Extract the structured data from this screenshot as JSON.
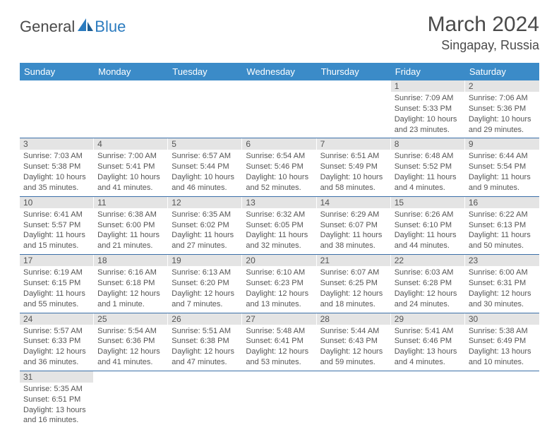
{
  "logo": {
    "part1": "General",
    "part2": "Blue"
  },
  "title": "March 2024",
  "location": "Singapay, Russia",
  "header_bg": "#3b8bc8",
  "row_border": "#3b6fa8",
  "daynum_bg": "#e4e4e4",
  "days": [
    "Sunday",
    "Monday",
    "Tuesday",
    "Wednesday",
    "Thursday",
    "Friday",
    "Saturday"
  ],
  "weeks": [
    [
      null,
      null,
      null,
      null,
      null,
      {
        "n": "1",
        "sr": "Sunrise: 7:09 AM",
        "ss": "Sunset: 5:33 PM",
        "dl": "Daylight: 10 hours and 23 minutes."
      },
      {
        "n": "2",
        "sr": "Sunrise: 7:06 AM",
        "ss": "Sunset: 5:36 PM",
        "dl": "Daylight: 10 hours and 29 minutes."
      }
    ],
    [
      {
        "n": "3",
        "sr": "Sunrise: 7:03 AM",
        "ss": "Sunset: 5:38 PM",
        "dl": "Daylight: 10 hours and 35 minutes."
      },
      {
        "n": "4",
        "sr": "Sunrise: 7:00 AM",
        "ss": "Sunset: 5:41 PM",
        "dl": "Daylight: 10 hours and 41 minutes."
      },
      {
        "n": "5",
        "sr": "Sunrise: 6:57 AM",
        "ss": "Sunset: 5:44 PM",
        "dl": "Daylight: 10 hours and 46 minutes."
      },
      {
        "n": "6",
        "sr": "Sunrise: 6:54 AM",
        "ss": "Sunset: 5:46 PM",
        "dl": "Daylight: 10 hours and 52 minutes."
      },
      {
        "n": "7",
        "sr": "Sunrise: 6:51 AM",
        "ss": "Sunset: 5:49 PM",
        "dl": "Daylight: 10 hours and 58 minutes."
      },
      {
        "n": "8",
        "sr": "Sunrise: 6:48 AM",
        "ss": "Sunset: 5:52 PM",
        "dl": "Daylight: 11 hours and 4 minutes."
      },
      {
        "n": "9",
        "sr": "Sunrise: 6:44 AM",
        "ss": "Sunset: 5:54 PM",
        "dl": "Daylight: 11 hours and 9 minutes."
      }
    ],
    [
      {
        "n": "10",
        "sr": "Sunrise: 6:41 AM",
        "ss": "Sunset: 5:57 PM",
        "dl": "Daylight: 11 hours and 15 minutes."
      },
      {
        "n": "11",
        "sr": "Sunrise: 6:38 AM",
        "ss": "Sunset: 6:00 PM",
        "dl": "Daylight: 11 hours and 21 minutes."
      },
      {
        "n": "12",
        "sr": "Sunrise: 6:35 AM",
        "ss": "Sunset: 6:02 PM",
        "dl": "Daylight: 11 hours and 27 minutes."
      },
      {
        "n": "13",
        "sr": "Sunrise: 6:32 AM",
        "ss": "Sunset: 6:05 PM",
        "dl": "Daylight: 11 hours and 32 minutes."
      },
      {
        "n": "14",
        "sr": "Sunrise: 6:29 AM",
        "ss": "Sunset: 6:07 PM",
        "dl": "Daylight: 11 hours and 38 minutes."
      },
      {
        "n": "15",
        "sr": "Sunrise: 6:26 AM",
        "ss": "Sunset: 6:10 PM",
        "dl": "Daylight: 11 hours and 44 minutes."
      },
      {
        "n": "16",
        "sr": "Sunrise: 6:22 AM",
        "ss": "Sunset: 6:13 PM",
        "dl": "Daylight: 11 hours and 50 minutes."
      }
    ],
    [
      {
        "n": "17",
        "sr": "Sunrise: 6:19 AM",
        "ss": "Sunset: 6:15 PM",
        "dl": "Daylight: 11 hours and 55 minutes."
      },
      {
        "n": "18",
        "sr": "Sunrise: 6:16 AM",
        "ss": "Sunset: 6:18 PM",
        "dl": "Daylight: 12 hours and 1 minute."
      },
      {
        "n": "19",
        "sr": "Sunrise: 6:13 AM",
        "ss": "Sunset: 6:20 PM",
        "dl": "Daylight: 12 hours and 7 minutes."
      },
      {
        "n": "20",
        "sr": "Sunrise: 6:10 AM",
        "ss": "Sunset: 6:23 PM",
        "dl": "Daylight: 12 hours and 13 minutes."
      },
      {
        "n": "21",
        "sr": "Sunrise: 6:07 AM",
        "ss": "Sunset: 6:25 PM",
        "dl": "Daylight: 12 hours and 18 minutes."
      },
      {
        "n": "22",
        "sr": "Sunrise: 6:03 AM",
        "ss": "Sunset: 6:28 PM",
        "dl": "Daylight: 12 hours and 24 minutes."
      },
      {
        "n": "23",
        "sr": "Sunrise: 6:00 AM",
        "ss": "Sunset: 6:31 PM",
        "dl": "Daylight: 12 hours and 30 minutes."
      }
    ],
    [
      {
        "n": "24",
        "sr": "Sunrise: 5:57 AM",
        "ss": "Sunset: 6:33 PM",
        "dl": "Daylight: 12 hours and 36 minutes."
      },
      {
        "n": "25",
        "sr": "Sunrise: 5:54 AM",
        "ss": "Sunset: 6:36 PM",
        "dl": "Daylight: 12 hours and 41 minutes."
      },
      {
        "n": "26",
        "sr": "Sunrise: 5:51 AM",
        "ss": "Sunset: 6:38 PM",
        "dl": "Daylight: 12 hours and 47 minutes."
      },
      {
        "n": "27",
        "sr": "Sunrise: 5:48 AM",
        "ss": "Sunset: 6:41 PM",
        "dl": "Daylight: 12 hours and 53 minutes."
      },
      {
        "n": "28",
        "sr": "Sunrise: 5:44 AM",
        "ss": "Sunset: 6:43 PM",
        "dl": "Daylight: 12 hours and 59 minutes."
      },
      {
        "n": "29",
        "sr": "Sunrise: 5:41 AM",
        "ss": "Sunset: 6:46 PM",
        "dl": "Daylight: 13 hours and 4 minutes."
      },
      {
        "n": "30",
        "sr": "Sunrise: 5:38 AM",
        "ss": "Sunset: 6:49 PM",
        "dl": "Daylight: 13 hours and 10 minutes."
      }
    ],
    [
      {
        "n": "31",
        "sr": "Sunrise: 5:35 AM",
        "ss": "Sunset: 6:51 PM",
        "dl": "Daylight: 13 hours and 16 minutes."
      },
      null,
      null,
      null,
      null,
      null,
      null
    ]
  ]
}
